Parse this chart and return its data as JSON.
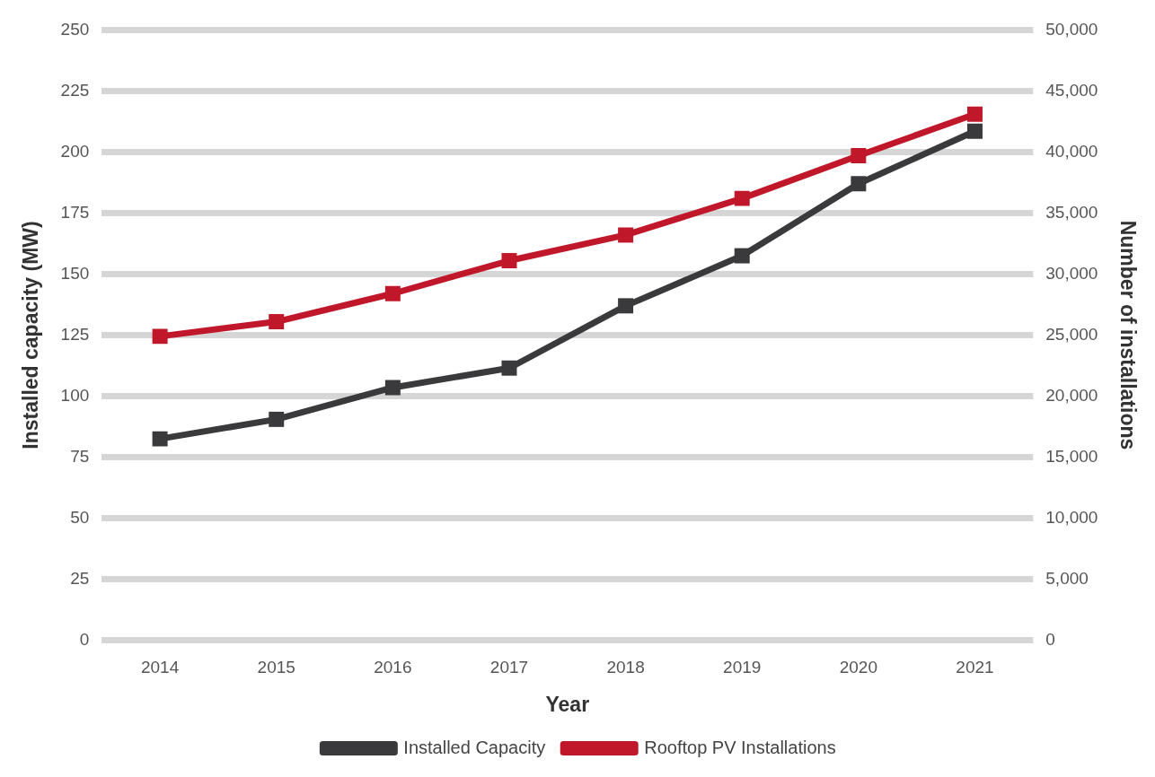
{
  "chart_data": {
    "type": "line",
    "xlabel": "Year",
    "ylabel": "Installed capacity (MW)",
    "y2label": "Number of installations",
    "categories": [
      "2014",
      "2015",
      "2016",
      "2017",
      "2018",
      "2019",
      "2020",
      "2021"
    ],
    "series": [
      {
        "name": "Installed Capacity",
        "color": "#3a3a3c",
        "values": [
          82.5,
          90.5,
          103.5,
          111.5,
          137,
          157.5,
          187,
          208.5
        ]
      },
      {
        "name": "Rooftop PV Installations",
        "color": "#c0182a",
        "axis": "y2",
        "values": [
          24900,
          26100,
          28400,
          31100,
          33200,
          36200,
          39700,
          43100
        ]
      }
    ],
    "ylim": [
      0,
      250
    ],
    "yticks": [
      0,
      25,
      50,
      75,
      100,
      125,
      150,
      175,
      200,
      225,
      250
    ],
    "y2lim": [
      0,
      50000
    ],
    "y2ticks": [
      {
        "value": 0,
        "label": "0"
      },
      {
        "value": 5000,
        "label": "5,000"
      },
      {
        "value": 10000,
        "label": "10,000"
      },
      {
        "value": 15000,
        "label": "15,000"
      },
      {
        "value": 20000,
        "label": "20,000"
      },
      {
        "value": 25000,
        "label": "25,000"
      },
      {
        "value": 30000,
        "label": "30,000"
      },
      {
        "value": 35000,
        "label": "35,000"
      },
      {
        "value": 40000,
        "label": "40,000"
      },
      {
        "value": 45000,
        "label": "45,000"
      },
      {
        "value": 50000,
        "label": "50,000"
      }
    ],
    "grid": "y",
    "legend": "bottom",
    "marker": "square",
    "line_style": "solid"
  }
}
